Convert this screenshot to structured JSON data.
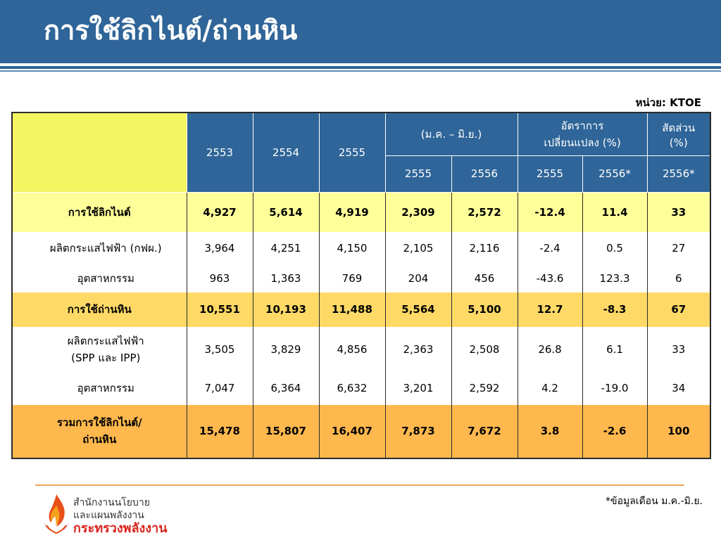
{
  "slide": {
    "title": "การใช้ลิกไนต์/ถ่านหิน",
    "unit": "หน่วย: KTOE",
    "footnote": "*ข้อมูลเดือน ม.ค.-มิ.ย."
  },
  "table": {
    "header": {
      "y2553": "2553",
      "y2554": "2554",
      "y2555": "2555",
      "period": "(ม.ค. – มิ.ย.)",
      "change_line1": "อัตราการ",
      "change_line2": "เปลี่ยนแปลง (%)",
      "share_line1": "สัดส่วน",
      "share_line2": "(%)",
      "p2555": "2555",
      "p2556": "2556",
      "c2555": "2555",
      "c2556": "2556*",
      "s2556": "2556*"
    },
    "rows": [
      {
        "label": "การใช้ลิกไนต์",
        "label2": "",
        "cells": [
          "4,927",
          "5,614",
          "4,919",
          "2,309",
          "2,572",
          "-12.4",
          "11.4",
          "33"
        ]
      },
      {
        "label": "ผลิตกระแสไฟฟ้า (กฟผ.)",
        "label2": "",
        "cells": [
          "3,964",
          "4,251",
          "4,150",
          "2,105",
          "2,116",
          "-2.4",
          "0.5",
          "27"
        ]
      },
      {
        "label": "อุตสาหกรรม",
        "label2": "",
        "cells": [
          "963",
          "1,363",
          "769",
          "204",
          "456",
          "-43.6",
          "123.3",
          "6"
        ]
      },
      {
        "label": "การใช้ถ่านหิน",
        "label2": "",
        "cells": [
          "10,551",
          "10,193",
          "11,488",
          "5,564",
          "5,100",
          "12.7",
          "-8.3",
          "67"
        ]
      },
      {
        "label": "ผลิตกระแสไฟฟ้า",
        "label2": "(SPP และ IPP)",
        "cells": [
          "3,505",
          "3,829",
          "4,856",
          "2,363",
          "2,508",
          "26.8",
          "6.1",
          "33"
        ]
      },
      {
        "label": "อุตสาหกรรม",
        "label2": "",
        "cells": [
          "7,047",
          "6,364",
          "6,632",
          "3,201",
          "2,592",
          "4.2",
          "-19.0",
          "34"
        ]
      },
      {
        "label": "รวมการใช้ลิกไนต์/",
        "label2": "ถ่านหิน",
        "cells": [
          "15,478",
          "15,807",
          "16,407",
          "7,873",
          "7,672",
          "3.8",
          "-2.6",
          "100"
        ]
      }
    ]
  },
  "logo": {
    "org_line1": "สำนักงานนโยบาย",
    "org_line2": "และแผนพลังงาน",
    "ministry": "กระทรวงพลังงาน"
  },
  "colors": {
    "header_blue": "#2f6598",
    "lignite_row": "#ffff99",
    "coal_row": "#ffd966",
    "total_row": "#ffb84d",
    "corner_cell": "#f5f561"
  }
}
